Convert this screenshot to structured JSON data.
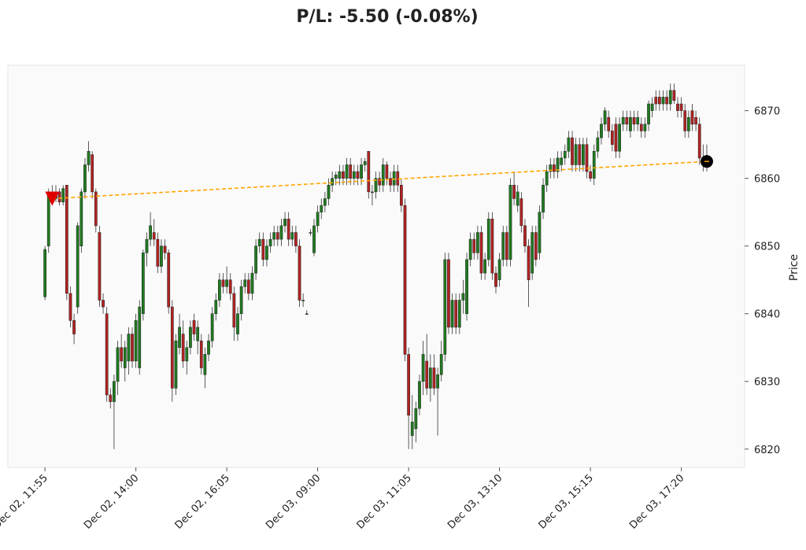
{
  "chart_data": {
    "type": "candlestick",
    "title": "P/L: -5.50 (-0.08%)",
    "y_label": "Price",
    "up_color": "#1f7a1f",
    "down_color": "#b22222",
    "trade_line_color": "#ffa500",
    "entry_marker_color": "#e00000",
    "exit_marker_color": "#000000",
    "ylim": [
      6817.3,
      6876.7
    ],
    "yticks": [
      6820,
      6830,
      6840,
      6850,
      6860,
      6870
    ],
    "entry": {
      "index": 2,
      "price": 6857
    },
    "exit": {
      "index": 182,
      "price": 6862.5
    },
    "categories": [
      "Dec 02, 11:55",
      null,
      null,
      null,
      null,
      null,
      null,
      null,
      null,
      null,
      null,
      null,
      null,
      null,
      null,
      null,
      null,
      null,
      null,
      null,
      null,
      null,
      null,
      null,
      null,
      "Dec 02, 14:00",
      null,
      null,
      null,
      null,
      null,
      null,
      null,
      null,
      null,
      null,
      null,
      null,
      null,
      null,
      null,
      null,
      null,
      null,
      null,
      null,
      null,
      null,
      null,
      null,
      "Dec 02, 16:05",
      null,
      null,
      null,
      null,
      null,
      null,
      null,
      null,
      null,
      null,
      null,
      null,
      null,
      null,
      null,
      null,
      null,
      null,
      null,
      null,
      null,
      null,
      null,
      null,
      "Dec 03, 09:00",
      null,
      null,
      null,
      null,
      null,
      null,
      null,
      null,
      null,
      null,
      null,
      null,
      null,
      null,
      null,
      null,
      null,
      null,
      null,
      null,
      null,
      null,
      null,
      null,
      "Dec 03, 11:05",
      null,
      null,
      null,
      null,
      null,
      null,
      null,
      null,
      null,
      null,
      null,
      null,
      null,
      null,
      null,
      null,
      null,
      null,
      null,
      null,
      null,
      null,
      null,
      null,
      "Dec 03, 13:10",
      null,
      null,
      null,
      null,
      null,
      null,
      null,
      null,
      null,
      null,
      null,
      null,
      null,
      null,
      null,
      null,
      null,
      null,
      null,
      null,
      null,
      null,
      null,
      null,
      "Dec 03, 15:15",
      null,
      null,
      null,
      null,
      null,
      null,
      null,
      null,
      null,
      null,
      null,
      null,
      null,
      null,
      null,
      null,
      null,
      null,
      null,
      null,
      null,
      null,
      null,
      null,
      "Dec 03, 17:20",
      null,
      null,
      null,
      null,
      null,
      null,
      null
    ],
    "ohlc": [
      [
        6842.5,
        6850,
        6842,
        6849.5
      ],
      [
        6850,
        6858.5,
        6849,
        6858
      ],
      [
        6858,
        6859,
        6856,
        6857
      ],
      [
        6857,
        6859,
        6856.5,
        6858
      ],
      [
        6858,
        6858.5,
        6856,
        6856.5
      ],
      [
        6856.5,
        6859,
        6856,
        6858.5
      ],
      [
        6859,
        6859,
        6842,
        6843
      ],
      [
        6843,
        6844,
        6838,
        6839
      ],
      [
        6839,
        6840,
        6835.5,
        6837
      ],
      [
        6841,
        6853.5,
        6840,
        6853
      ],
      [
        6850,
        6858.5,
        6849,
        6858
      ],
      [
        6858,
        6863,
        6857,
        6862
      ],
      [
        6862,
        6865.5,
        6861,
        6864
      ],
      [
        6863.5,
        6864,
        6857,
        6858
      ],
      [
        6858,
        6858.5,
        6852,
        6853
      ],
      [
        6852,
        6853,
        6841,
        6842
      ],
      [
        6842,
        6843,
        6840,
        6841
      ],
      [
        6840,
        6841,
        6827,
        6828
      ],
      [
        6828,
        6829,
        6826,
        6827
      ],
      [
        6827,
        6831,
        6820,
        6830
      ],
      [
        6830,
        6836,
        6828,
        6835
      ],
      [
        6835,
        6837,
        6832,
        6833
      ],
      [
        6832,
        6836,
        6830,
        6835
      ],
      [
        6833,
        6838,
        6831,
        6837
      ],
      [
        6837,
        6838,
        6832,
        6833
      ],
      [
        6833,
        6840,
        6832,
        6839
      ],
      [
        6832,
        6842,
        6831,
        6841
      ],
      [
        6840,
        6849.5,
        6839,
        6849
      ],
      [
        6849,
        6852,
        6847,
        6851
      ],
      [
        6851,
        6855,
        6850,
        6853
      ],
      [
        6852,
        6854,
        6850,
        6851
      ],
      [
        6851,
        6852,
        6846,
        6847
      ],
      [
        6847,
        6851,
        6846,
        6850
      ],
      [
        6850,
        6851,
        6848,
        6849
      ],
      [
        6849,
        6849.5,
        6840,
        6841
      ],
      [
        6841,
        6842,
        6827,
        6829
      ],
      [
        6829,
        6837,
        6828,
        6836
      ],
      [
        6835,
        6840,
        6834,
        6838
      ],
      [
        6837,
        6839,
        6832,
        6833
      ],
      [
        6833,
        6836,
        6831,
        6835
      ],
      [
        6835,
        6839,
        6834,
        6838
      ],
      [
        6839,
        6840,
        6836,
        6837
      ],
      [
        6836,
        6839,
        6834,
        6838
      ],
      [
        6836,
        6837,
        6831,
        6832
      ],
      [
        6831,
        6835,
        6829,
        6834
      ],
      [
        6834,
        6837,
        6833,
        6836
      ],
      [
        6836,
        6841,
        6835,
        6840
      ],
      [
        6840,
        6843,
        6839,
        6842
      ],
      [
        6842,
        6846,
        6841,
        6845
      ],
      [
        6845,
        6846,
        6843,
        6844
      ],
      [
        6844,
        6847,
        6843,
        6845
      ],
      [
        6845,
        6846,
        6842,
        6843
      ],
      [
        6843,
        6844,
        6836,
        6838
      ],
      [
        6837,
        6841,
        6836,
        6840
      ],
      [
        6840,
        6845,
        6839,
        6844
      ],
      [
        6844,
        6846,
        6843,
        6845
      ],
      [
        6845,
        6846,
        6842,
        6843
      ],
      [
        6843,
        6847,
        6842,
        6846
      ],
      [
        6846,
        6851,
        6845,
        6850
      ],
      [
        6850,
        6852,
        6849,
        6851
      ],
      [
        6851,
        6852,
        6847,
        6848
      ],
      [
        6848,
        6851,
        6847,
        6850
      ],
      [
        6850,
        6852,
        6849,
        6851
      ],
      [
        6851,
        6853,
        6850,
        6852
      ],
      [
        6852,
        6853,
        6850,
        6851
      ],
      [
        6851,
        6854,
        6850,
        6853
      ],
      [
        6853,
        6855,
        6852,
        6854
      ],
      [
        6854,
        6855,
        6850,
        6851
      ],
      [
        6851,
        6853,
        6850,
        6852
      ],
      [
        6852,
        6853,
        6849,
        6850
      ],
      [
        6850,
        6851,
        6841,
        6842
      ],
      [
        6842,
        6843,
        6841,
        6842
      ],
      [
        6840,
        6840.5,
        6840,
        6840
      ],
      [
        6852,
        6852.5,
        6851.5,
        6852
      ],
      [
        6849,
        6854,
        6848.5,
        6853
      ],
      [
        6853,
        6856,
        6852,
        6855
      ],
      [
        6855,
        6857,
        6854,
        6856
      ],
      [
        6856,
        6858,
        6855,
        6857
      ],
      [
        6857,
        6860,
        6856,
        6859
      ],
      [
        6859,
        6861,
        6858,
        6860
      ],
      [
        6860,
        6861,
        6859,
        6860.5
      ],
      [
        6860,
        6862,
        6859,
        6861
      ],
      [
        6861,
        6862,
        6859,
        6860
      ],
      [
        6860,
        6863,
        6859,
        6862
      ],
      [
        6862,
        6863,
        6859,
        6860
      ],
      [
        6860,
        6862,
        6859,
        6861
      ],
      [
        6861,
        6862,
        6859,
        6860
      ],
      [
        6860,
        6863,
        6859,
        6862
      ],
      [
        6862,
        6863,
        6861,
        6862.5
      ],
      [
        6864,
        6864,
        6857,
        6858
      ],
      [
        6858,
        6859,
        6856,
        6858
      ],
      [
        6858,
        6861,
        6857,
        6860
      ],
      [
        6860,
        6861,
        6858,
        6859
      ],
      [
        6859,
        6863,
        6858,
        6862
      ],
      [
        6862,
        6862.5,
        6859,
        6860
      ],
      [
        6860,
        6861,
        6858,
        6859
      ],
      [
        6859,
        6862,
        6858,
        6861
      ],
      [
        6861,
        6862,
        6858,
        6859
      ],
      [
        6859,
        6860,
        6855,
        6856
      ],
      [
        6856,
        6857,
        6833,
        6834
      ],
      [
        6834,
        6835,
        6820,
        6825
      ],
      [
        6822,
        6828,
        6820,
        6824
      ],
      [
        6823,
        6827,
        6821,
        6826
      ],
      [
        6826,
        6831,
        6825,
        6830
      ],
      [
        6830,
        6836,
        6828,
        6834
      ],
      [
        6833,
        6837,
        6828,
        6829
      ],
      [
        6829,
        6834,
        6827,
        6832
      ],
      [
        6832,
        6834,
        6828,
        6829
      ],
      [
        6829,
        6832,
        6822,
        6831
      ],
      [
        6831,
        6836,
        6830,
        6834
      ],
      [
        6834,
        6849,
        6833,
        6848
      ],
      [
        6848,
        6849,
        6837,
        6838
      ],
      [
        6838,
        6843,
        6837,
        6842
      ],
      [
        6842,
        6843,
        6837,
        6838
      ],
      [
        6838,
        6843,
        6837,
        6842
      ],
      [
        6842,
        6845,
        6840,
        6843
      ],
      [
        6840,
        6849,
        6839,
        6848
      ],
      [
        6848,
        6852,
        6847,
        6851
      ],
      [
        6851,
        6852,
        6848,
        6849
      ],
      [
        6849,
        6853,
        6848,
        6852
      ],
      [
        6852,
        6853,
        6845,
        6846
      ],
      [
        6846,
        6849,
        6845,
        6848
      ],
      [
        6848,
        6855,
        6847,
        6854
      ],
      [
        6854,
        6855,
        6845,
        6846
      ],
      [
        6846,
        6847,
        6843,
        6844
      ],
      [
        6845,
        6849,
        6844,
        6848
      ],
      [
        6848,
        6853,
        6847,
        6852
      ],
      [
        6852,
        6853,
        6847,
        6848
      ],
      [
        6848,
        6860,
        6847,
        6859
      ],
      [
        6859,
        6861,
        6856,
        6857
      ],
      [
        6856,
        6859,
        6855,
        6858
      ],
      [
        6857,
        6858,
        6852,
        6853
      ],
      [
        6853,
        6854,
        6849,
        6850
      ],
      [
        6850,
        6851,
        6841,
        6845
      ],
      [
        6846,
        6853,
        6845,
        6852
      ],
      [
        6852,
        6853,
        6847,
        6848
      ],
      [
        6849,
        6856,
        6848,
        6855
      ],
      [
        6855,
        6860,
        6854,
        6859
      ],
      [
        6859,
        6862,
        6858,
        6861
      ],
      [
        6861,
        6863,
        6860,
        6862
      ],
      [
        6862,
        6863,
        6860,
        6861
      ],
      [
        6861,
        6864,
        6860,
        6863
      ],
      [
        6862,
        6864,
        6861,
        6863
      ],
      [
        6863,
        6865,
        6862,
        6864
      ],
      [
        6864,
        6867,
        6863,
        6866
      ],
      [
        6866,
        6867,
        6861,
        6862
      ],
      [
        6862,
        6866,
        6861,
        6865
      ],
      [
        6865,
        6866,
        6861,
        6862
      ],
      [
        6862,
        6866,
        6861,
        6865
      ],
      [
        6865,
        6866,
        6860,
        6861
      ],
      [
        6861,
        6862,
        6859.5,
        6860
      ],
      [
        6860,
        6865,
        6859,
        6864
      ],
      [
        6864,
        6867,
        6863,
        6866
      ],
      [
        6866,
        6869,
        6865,
        6868
      ],
      [
        6868,
        6870.5,
        6867,
        6870
      ],
      [
        6869,
        6870,
        6866,
        6867
      ],
      [
        6867,
        6868,
        6864,
        6865
      ],
      [
        6868,
        6869,
        6863,
        6864
      ],
      [
        6864,
        6869,
        6863,
        6868
      ],
      [
        6868,
        6870,
        6867,
        6869
      ],
      [
        6869,
        6870,
        6867,
        6868
      ],
      [
        6867,
        6870,
        6866,
        6869
      ],
      [
        6869,
        6870,
        6867,
        6868
      ],
      [
        6868,
        6870,
        6867,
        6869
      ],
      [
        6868,
        6869,
        6866,
        6867
      ],
      [
        6867,
        6869,
        6866,
        6868
      ],
      [
        6868,
        6871.5,
        6867,
        6871
      ],
      [
        6870,
        6872,
        6869,
        6871
      ],
      [
        6872,
        6873,
        6870,
        6871
      ],
      [
        6872,
        6873,
        6870,
        6871
      ],
      [
        6871,
        6873,
        6870,
        6872
      ],
      [
        6872,
        6873,
        6870,
        6871
      ],
      [
        6871,
        6874,
        6870,
        6873
      ],
      [
        6873,
        6874,
        6871,
        6871.5
      ],
      [
        6871,
        6872,
        6869,
        6870
      ],
      [
        6871,
        6872,
        6869,
        6870
      ],
      [
        6870,
        6871,
        6866,
        6867
      ],
      [
        6867,
        6870,
        6866,
        6869
      ],
      [
        6870,
        6871,
        6867,
        6868
      ],
      [
        6869,
        6870,
        6867,
        6868
      ],
      [
        6868,
        6869,
        6862,
        6863
      ],
      [
        6862,
        6865,
        6861,
        6863
      ],
      [
        6862.5,
        6865,
        6861,
        6862.5
      ]
    ]
  }
}
